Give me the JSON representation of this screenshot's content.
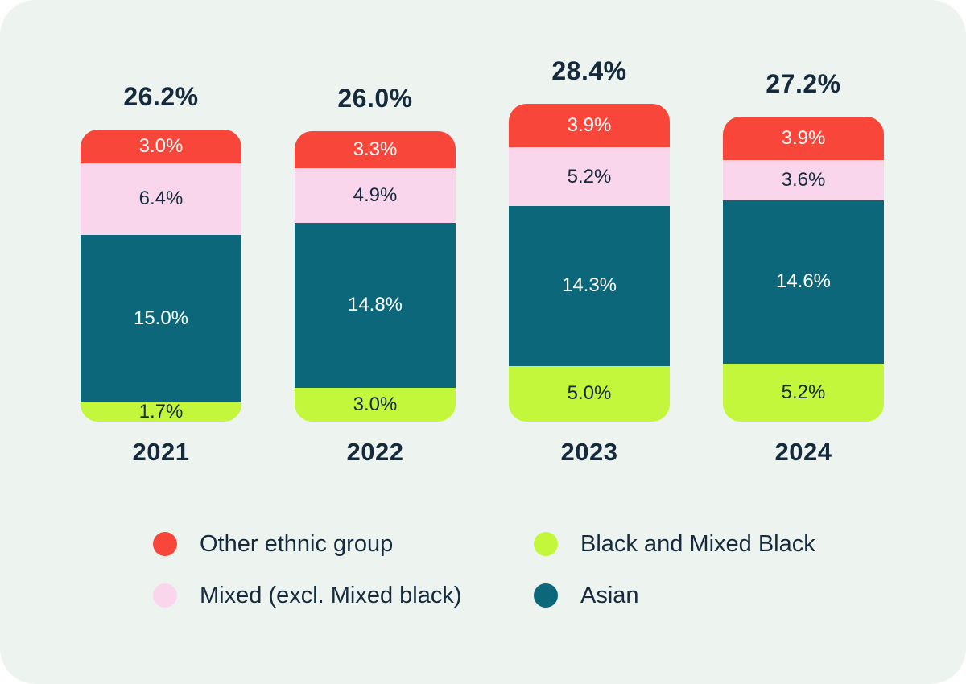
{
  "page": {
    "background": "#FFFFFF",
    "card_background": "#EDF4F0",
    "text_color": "#152B3D"
  },
  "chart_data": {
    "type": "bar",
    "stacked": true,
    "title": "",
    "xlabel": "",
    "ylabel": "",
    "categories": [
      "2021",
      "2022",
      "2023",
      "2024"
    ],
    "series": [
      {
        "name": "Other ethnic group",
        "color": "#F9463A",
        "label_color": "#FFFFFF",
        "values": [
          3.0,
          3.3,
          3.9,
          3.9
        ]
      },
      {
        "name": "Mixed (excl. Mixed black)",
        "color": "#FAD6EC",
        "label_color": "#152B3D",
        "values": [
          6.4,
          4.9,
          5.2,
          3.6
        ]
      },
      {
        "name": "Asian",
        "color": "#0B6779",
        "label_color": "#FFFFFF",
        "values": [
          15.0,
          14.8,
          14.3,
          14.6
        ]
      },
      {
        "name": "Black and Mixed Black",
        "color": "#C3F73C",
        "label_color": "#152B3D",
        "values": [
          1.7,
          3.0,
          5.0,
          5.2
        ]
      }
    ],
    "totals": [
      "26.2%",
      "26.0%",
      "28.4%",
      "27.2%"
    ],
    "segment_labels": [
      [
        "3.0%",
        "6.4%",
        "15.0%",
        "1.7%"
      ],
      [
        "3.3%",
        "4.9%",
        "14.8%",
        "3.0%"
      ],
      [
        "3.9%",
        "5.2%",
        "14.3%",
        "5.0%"
      ],
      [
        "3.9%",
        "3.6%",
        "14.6%",
        "5.2%"
      ]
    ],
    "ylim": [
      0,
      30
    ],
    "grid": false,
    "legend_position": "bottom"
  },
  "legend": {
    "items": [
      {
        "label": "Other ethnic group",
        "color": "#F9463A"
      },
      {
        "label": "Black and Mixed Black",
        "color": "#C3F73C"
      },
      {
        "label": "Mixed (excl. Mixed black)",
        "color": "#FAD6EC"
      },
      {
        "label": "Asian",
        "color": "#0B6779"
      }
    ]
  }
}
